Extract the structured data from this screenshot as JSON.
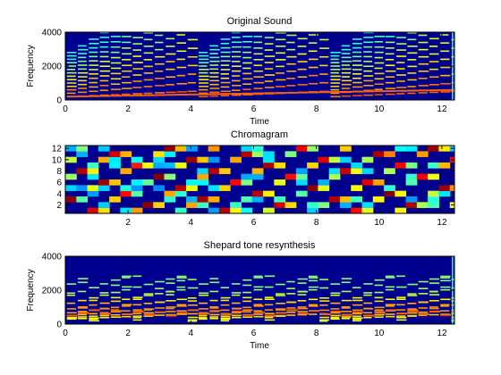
{
  "chart_data": [
    {
      "type": "heatmap",
      "title": "Original Sound",
      "xlabel": "Time",
      "ylabel": "Frequency",
      "xlim": [
        0,
        12.4
      ],
      "ylim": [
        0,
        4000
      ],
      "xticks": [
        0,
        2,
        4,
        6,
        8,
        10,
        12
      ],
      "yticks": [
        0,
        2000,
        4000
      ],
      "colormap": "jet",
      "description_kind": "spectrogram"
    },
    {
      "type": "heatmap",
      "title": "Chromagram",
      "xlabel": "",
      "ylabel": "",
      "xlim": [
        0,
        12.4
      ],
      "ylim": [
        0.5,
        12.5
      ],
      "xticks": [
        2,
        4,
        6,
        8,
        10,
        12
      ],
      "yticks": [
        2,
        4,
        6,
        8,
        10,
        12
      ],
      "colormap": "jet",
      "description_kind": "chromagram"
    },
    {
      "type": "heatmap",
      "title": "Shepard tone resynthesis",
      "xlabel": "Time",
      "ylabel": "Frequency",
      "xlim": [
        0,
        12.4
      ],
      "ylim": [
        0,
        4000
      ],
      "xticks": [
        0,
        2,
        4,
        6,
        8,
        10,
        12
      ],
      "yticks": [
        0,
        2000,
        4000
      ],
      "colormap": "jet",
      "description_kind": "spectrogram"
    }
  ],
  "colors": {
    "background_low": "#00008f",
    "mid": "#00ffff",
    "high": "#ff0000"
  }
}
